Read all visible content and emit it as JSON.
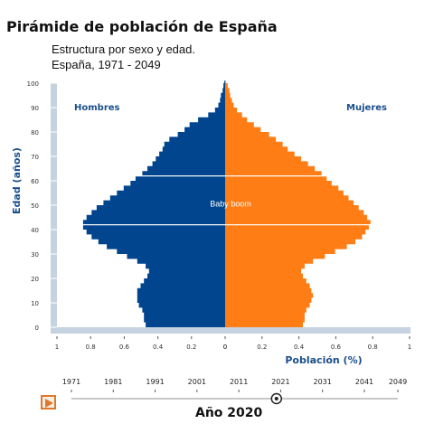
{
  "title": "Pirámide de población de España",
  "subtitle_line1": "Estructura por sexo y edad.",
  "subtitle_line2": "España, 1971 - 2049",
  "colors": {
    "hombres": "#00458e",
    "mujeres": "#ff7d14",
    "axis_label": "#1a4e8a",
    "axis_bar": "#c5d2e0",
    "play": "#e0772a"
  },
  "chart_data": {
    "type": "bar",
    "orientation": "horizontal",
    "ylabel": "Edad (años)",
    "xlabel": "Población (%)",
    "y_ticks": [
      0,
      10,
      20,
      30,
      40,
      50,
      60,
      70,
      80,
      90,
      100
    ],
    "x_tick_labels_left": [
      "1",
      "0.8",
      "0.6",
      "0.4",
      "0.2",
      "0"
    ],
    "x_tick_labels_right": [
      "0",
      "0.2",
      "0.4",
      "0.6",
      "0.8",
      "1"
    ],
    "xlim": [
      0,
      1
    ],
    "ylim": [
      0,
      100
    ],
    "series": [
      {
        "name": "Hombres",
        "points": [
          [
            0,
            0.47
          ],
          [
            2,
            0.48
          ],
          [
            4,
            0.48
          ],
          [
            6,
            0.49
          ],
          [
            8,
            0.51
          ],
          [
            10,
            0.52
          ],
          [
            12,
            0.52
          ],
          [
            14,
            0.52
          ],
          [
            16,
            0.5
          ],
          [
            18,
            0.48
          ],
          [
            20,
            0.46
          ],
          [
            22,
            0.45
          ],
          [
            24,
            0.47
          ],
          [
            26,
            0.52
          ],
          [
            28,
            0.58
          ],
          [
            30,
            0.64
          ],
          [
            32,
            0.7
          ],
          [
            34,
            0.75
          ],
          [
            36,
            0.79
          ],
          [
            38,
            0.82
          ],
          [
            40,
            0.84
          ],
          [
            42,
            0.84
          ],
          [
            44,
            0.82
          ],
          [
            46,
            0.79
          ],
          [
            48,
            0.76
          ],
          [
            50,
            0.72
          ],
          [
            52,
            0.68
          ],
          [
            54,
            0.64
          ],
          [
            56,
            0.6
          ],
          [
            58,
            0.56
          ],
          [
            60,
            0.53
          ],
          [
            62,
            0.49
          ],
          [
            64,
            0.46
          ],
          [
            66,
            0.43
          ],
          [
            68,
            0.41
          ],
          [
            70,
            0.39
          ],
          [
            72,
            0.37
          ],
          [
            74,
            0.36
          ],
          [
            76,
            0.33
          ],
          [
            78,
            0.28
          ],
          [
            80,
            0.24
          ],
          [
            82,
            0.21
          ],
          [
            84,
            0.16
          ],
          [
            86,
            0.1
          ],
          [
            88,
            0.06
          ],
          [
            90,
            0.04
          ],
          [
            92,
            0.03
          ],
          [
            94,
            0.025
          ],
          [
            96,
            0.015
          ],
          [
            98,
            0.01
          ],
          [
            100,
            0.005
          ]
        ]
      },
      {
        "name": "Mujeres",
        "points": [
          [
            0,
            0.46
          ],
          [
            2,
            0.47
          ],
          [
            4,
            0.47
          ],
          [
            6,
            0.48
          ],
          [
            8,
            0.5
          ],
          [
            10,
            0.51
          ],
          [
            12,
            0.52
          ],
          [
            14,
            0.51
          ],
          [
            16,
            0.5
          ],
          [
            18,
            0.48
          ],
          [
            20,
            0.46
          ],
          [
            22,
            0.45
          ],
          [
            24,
            0.47
          ],
          [
            26,
            0.52
          ],
          [
            28,
            0.59
          ],
          [
            30,
            0.65
          ],
          [
            32,
            0.72
          ],
          [
            34,
            0.77
          ],
          [
            36,
            0.81
          ],
          [
            38,
            0.83
          ],
          [
            40,
            0.85
          ],
          [
            42,
            0.86
          ],
          [
            44,
            0.84
          ],
          [
            46,
            0.82
          ],
          [
            48,
            0.79
          ],
          [
            50,
            0.76
          ],
          [
            52,
            0.73
          ],
          [
            54,
            0.7
          ],
          [
            56,
            0.67
          ],
          [
            58,
            0.63
          ],
          [
            60,
            0.6
          ],
          [
            62,
            0.57
          ],
          [
            64,
            0.53
          ],
          [
            66,
            0.49
          ],
          [
            68,
            0.45
          ],
          [
            70,
            0.41
          ],
          [
            72,
            0.37
          ],
          [
            74,
            0.34
          ],
          [
            76,
            0.3
          ],
          [
            78,
            0.26
          ],
          [
            80,
            0.21
          ],
          [
            82,
            0.17
          ],
          [
            84,
            0.13
          ],
          [
            86,
            0.1
          ],
          [
            88,
            0.07
          ],
          [
            90,
            0.05
          ],
          [
            92,
            0.04
          ],
          [
            94,
            0.03
          ],
          [
            96,
            0.025
          ],
          [
            98,
            0.015
          ],
          [
            100,
            0.005
          ]
        ]
      }
    ],
    "annotations": [
      {
        "text": "Baby boom",
        "age_range": [
          42,
          62
        ]
      }
    ]
  },
  "slider": {
    "years": [
      "1971",
      "1981",
      "1991",
      "2001",
      "2011",
      "2021",
      "2031",
      "2041",
      "2049"
    ],
    "range": [
      1971,
      2049
    ],
    "value": 2020,
    "year_label": "Año 2020"
  }
}
